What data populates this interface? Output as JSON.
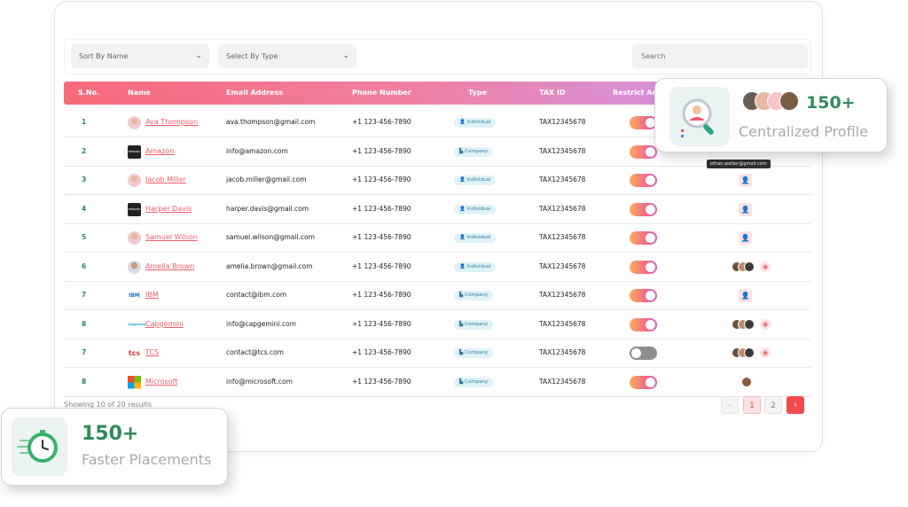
{
  "filters": {
    "sort_label": "Sort By Name",
    "type_label": "Select By Type",
    "search_placeholder": "Search"
  },
  "table": {
    "columns": [
      "S.No.",
      "Name",
      "Email Address",
      "Phone Number",
      "Type",
      "TAX ID",
      "Restrict Ac"
    ],
    "rows": [
      {
        "sno": "1",
        "name": "Ava Thompson",
        "email": "ava.thompson@gmail.com",
        "phone": "+1 123-456-7890",
        "type": "Individual",
        "tax": "TAX12345678",
        "restricted": true,
        "logo": "avatar"
      },
      {
        "sno": "2",
        "name": "Amazon",
        "email": "info@amazon.com",
        "phone": "+1 123-456-7890",
        "type": "Company",
        "tax": "TAX12345678",
        "restricted": true,
        "logo": "amazon"
      },
      {
        "sno": "3",
        "name": "Jacob Miller",
        "email": "jacob.miller@gmail.com",
        "phone": "+1 123-456-7890",
        "type": "Individual",
        "tax": "TAX12345678",
        "restricted": true,
        "logo": "avatar"
      },
      {
        "sno": "4",
        "name": "Harper Davis",
        "email": "harper.davis@gmail.com",
        "phone": "+1 123-456-7890",
        "type": "Individual",
        "tax": "TAX12345678",
        "restricted": true,
        "logo": "amazon"
      },
      {
        "sno": "5",
        "name": "Samuel Wilson",
        "email": "samuel.wilson@gmail.com",
        "phone": "+1 123-456-7890",
        "type": "Individual",
        "tax": "TAX12345678",
        "restricted": true,
        "logo": "avatar"
      },
      {
        "sno": "6",
        "name": "Amelia Brown",
        "email": "amelia.brown@gmail.com",
        "phone": "+1 123-456-7890",
        "type": "Individual",
        "tax": "TAX12345678",
        "restricted": true,
        "logo": "avatar-man"
      },
      {
        "sno": "7",
        "name": "IBM",
        "email": "contact@ibm.com",
        "phone": "+1 123-456-7890",
        "type": "Company",
        "tax": "TAX12345678",
        "restricted": true,
        "logo": "ibm"
      },
      {
        "sno": "8",
        "name": "Capgemini",
        "email": "info@capgemini.com",
        "phone": "+1 123-456-7890",
        "type": "Company",
        "tax": "TAX12345678",
        "restricted": true,
        "logo": "capgemini"
      },
      {
        "sno": "7",
        "name": "TCS",
        "email": "contact@tcs.com",
        "phone": "+1 123-456-7890",
        "type": "Company",
        "tax": "TAX12345678",
        "restricted": false,
        "logo": "tcs"
      },
      {
        "sno": "8",
        "name": "Microsoft",
        "email": "info@microsoft.com",
        "phone": "+1 123-456-7890",
        "type": "Company",
        "tax": "TAX12345678",
        "restricted": true,
        "logo": "microsoft"
      }
    ]
  },
  "results_text": "Showing 10 of 20 results",
  "pagination": {
    "prev": "‹",
    "pages": [
      "1",
      "2"
    ],
    "next": "›"
  },
  "tooltip": "ethan.walker@gmail.com",
  "cards": {
    "profile": {
      "number": "150+",
      "label": "Centralized Profile"
    },
    "placement": {
      "number": "150+",
      "label": "Faster Placements"
    }
  },
  "icons": {
    "chevron": "chevron-down-icon",
    "user": "user-icon",
    "eye": "eye-icon",
    "search_profile": "magnifier-profile-icon",
    "timer": "stopwatch-icon"
  },
  "colors": {
    "accent": "#ef5b6b",
    "green": "#2f8a5b",
    "header_start": "#f66a7a",
    "header_end": "#c98fe4"
  }
}
